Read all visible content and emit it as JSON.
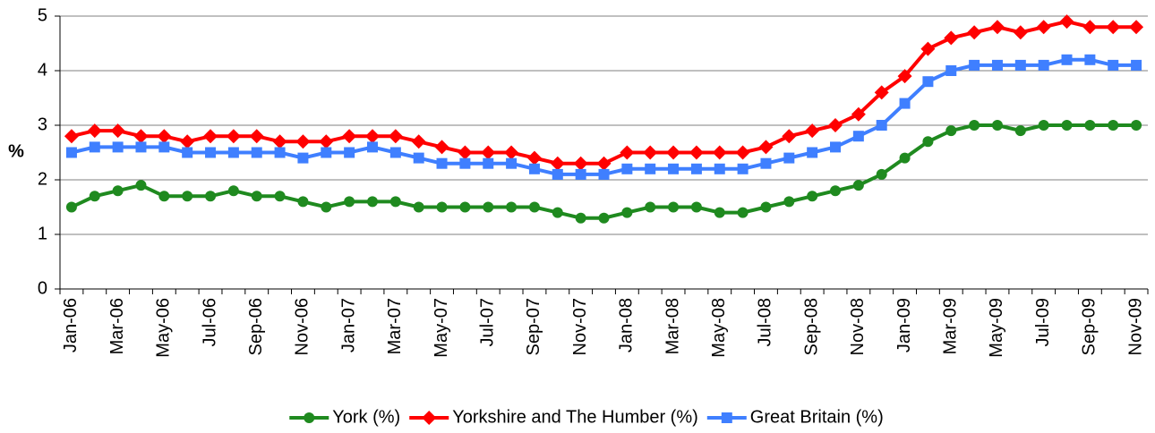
{
  "chart_data": {
    "type": "line",
    "y_label": "%",
    "categories": [
      "Jan-06",
      null,
      "Mar-06",
      null,
      "May-06",
      null,
      "Jul-06",
      null,
      "Sep-06",
      null,
      "Nov-06",
      null,
      "Jan-07",
      null,
      "Mar-07",
      null,
      "May-07",
      null,
      "Jul-07",
      null,
      "Sep-07",
      null,
      "Nov-07",
      null,
      "Jan-08",
      null,
      "Mar-08",
      null,
      "May-08",
      null,
      "Jul-08",
      null,
      "Sep-08",
      null,
      "Nov-08",
      null,
      "Jan-09",
      null,
      "Mar-09",
      null,
      "May-09",
      null,
      "Jul-09",
      null,
      "Sep-09",
      null,
      "Nov-09"
    ],
    "series": [
      {
        "name": "York (%)",
        "color": "#1f8a1f",
        "marker": "circle",
        "values": [
          1.5,
          1.7,
          1.8,
          1.9,
          1.7,
          1.7,
          1.7,
          1.8,
          1.7,
          1.7,
          1.6,
          1.5,
          1.6,
          1.6,
          1.6,
          1.5,
          1.5,
          1.5,
          1.5,
          1.5,
          1.5,
          1.4,
          1.3,
          1.3,
          1.4,
          1.5,
          1.5,
          1.5,
          1.4,
          1.4,
          1.5,
          1.6,
          1.7,
          1.8,
          1.9,
          2.1,
          2.4,
          2.7,
          2.9,
          3.0,
          3.0,
          2.9,
          3.0,
          3.0,
          3.0,
          3.0,
          3.0
        ]
      },
      {
        "name": "Yorkshire and The Humber (%)",
        "color": "#ff0000",
        "marker": "diamond",
        "values": [
          2.8,
          2.9,
          2.9,
          2.8,
          2.8,
          2.7,
          2.8,
          2.8,
          2.8,
          2.7,
          2.7,
          2.7,
          2.8,
          2.8,
          2.8,
          2.7,
          2.6,
          2.5,
          2.5,
          2.5,
          2.4,
          2.3,
          2.3,
          2.3,
          2.5,
          2.5,
          2.5,
          2.5,
          2.5,
          2.5,
          2.6,
          2.8,
          2.9,
          3.0,
          3.2,
          3.6,
          3.9,
          4.4,
          4.6,
          4.7,
          4.8,
          4.7,
          4.8,
          4.9,
          4.8,
          4.8,
          4.8
        ]
      },
      {
        "name": "Great Britain (%)",
        "color": "#3f7fff",
        "marker": "square",
        "values": [
          2.5,
          2.6,
          2.6,
          2.6,
          2.6,
          2.5,
          2.5,
          2.5,
          2.5,
          2.5,
          2.4,
          2.5,
          2.5,
          2.6,
          2.5,
          2.4,
          2.3,
          2.3,
          2.3,
          2.3,
          2.2,
          2.1,
          2.1,
          2.1,
          2.2,
          2.2,
          2.2,
          2.2,
          2.2,
          2.2,
          2.3,
          2.4,
          2.5,
          2.6,
          2.8,
          3.0,
          3.4,
          3.8,
          4.0,
          4.1,
          4.1,
          4.1,
          4.1,
          4.2,
          4.2,
          4.1,
          4.1
        ]
      }
    ],
    "ylim": [
      0,
      5
    ],
    "yticks": [
      0,
      1,
      2,
      3,
      4,
      5
    ],
    "grid": true,
    "legend": "bottom"
  }
}
